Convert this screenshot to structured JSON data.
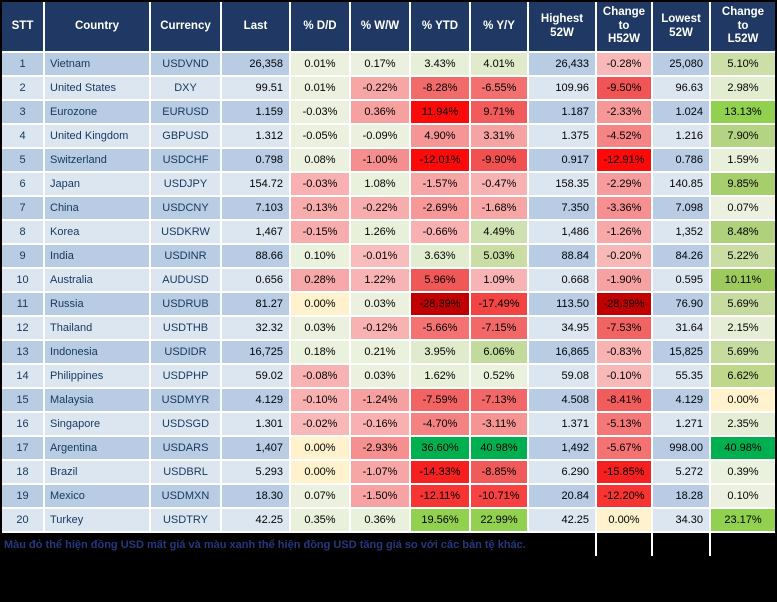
{
  "colors": {
    "header_bg": "#1F3864",
    "header_text": "#FFFFFF",
    "row_odd": "#B8CCE4",
    "row_even": "#DCE6F1",
    "grid": "#FFFFFF",
    "identifier_text": "#17375D",
    "footer_bg": "#000000",
    "footer_text": "#25387E",
    "zero_cell": "#FFF2CC",
    "strong_green": "#00B050",
    "bright_green": "#92D050",
    "bright_red": "#FB0A0A",
    "dark_red": "#C00000"
  },
  "table": {
    "columns": [
      {
        "key": "stt",
        "label": "STT"
      },
      {
        "key": "country",
        "label": "Country"
      },
      {
        "key": "currency",
        "label": "Currency"
      },
      {
        "key": "last",
        "label": "Last"
      },
      {
        "key": "dd",
        "label": "% D/D"
      },
      {
        "key": "ww",
        "label": "% W/W"
      },
      {
        "key": "ytd",
        "label": "% YTD"
      },
      {
        "key": "yy",
        "label": "% Y/Y"
      },
      {
        "key": "high",
        "label": "Highest\n52W"
      },
      {
        "key": "chg_h",
        "label": "Change\nto\nH52W"
      },
      {
        "key": "low",
        "label": "Lowest\n52W"
      },
      {
        "key": "chg_l",
        "label": "Change\nto\nL52W"
      }
    ],
    "rows": [
      {
        "stt": "1",
        "country": "Vietnam",
        "currency": "USDVND",
        "last": "26,358",
        "dd": {
          "v": "0.01%",
          "c": "#EBF1DE"
        },
        "ww": {
          "v": "0.17%",
          "c": "#EBF1DE"
        },
        "ytd": {
          "v": "3.43%",
          "c": "#E6EFD7"
        },
        "yy": {
          "v": "4.01%",
          "c": "#E0EBCB"
        },
        "high": "26,433",
        "chg_h": {
          "v": "-0.28%",
          "c": "#F8B8B8"
        },
        "low": "25,080",
        "chg_l": {
          "v": "5.10%",
          "c": "#CCDFA9"
        }
      },
      {
        "stt": "2",
        "country": "United States",
        "currency": "DXY",
        "last": "99.51",
        "dd": {
          "v": "0.01%",
          "c": "#EBF1DE"
        },
        "ww": {
          "v": "-0.22%",
          "c": "#F7A6A6"
        },
        "ytd": {
          "v": "-8.28%",
          "c": "#F26B6B"
        },
        "yy": {
          "v": "-6.55%",
          "c": "#F27070"
        },
        "high": "109.96",
        "chg_h": {
          "v": "-9.50%",
          "c": "#F15454"
        },
        "low": "96.63",
        "chg_l": {
          "v": "2.98%",
          "c": "#E2ECCF"
        }
      },
      {
        "stt": "3",
        "country": "Eurozone",
        "currency": "EURUSD",
        "last": "1.159",
        "dd": {
          "v": "-0.03%",
          "c": "#EBF1DE"
        },
        "ww": {
          "v": "0.36%",
          "c": "#F7A0A0"
        },
        "ytd": {
          "v": "11.94%",
          "c": "#FB0A0A"
        },
        "yy": {
          "v": "9.71%",
          "c": "#F25B5B"
        },
        "high": "1.187",
        "chg_h": {
          "v": "-2.33%",
          "c": "#F69898"
        },
        "low": "1.024",
        "chg_l": {
          "v": "13.13%",
          "c": "#92D050"
        }
      },
      {
        "stt": "4",
        "country": "United Kingdom",
        "currency": "GBPUSD",
        "last": "1.312",
        "dd": {
          "v": "-0.05%",
          "c": "#EBF1DE"
        },
        "ww": {
          "v": "-0.09%",
          "c": "#EBF1DE"
        },
        "ytd": {
          "v": "4.90%",
          "c": "#F59595"
        },
        "yy": {
          "v": "3.31%",
          "c": "#F6A3A3"
        },
        "high": "1.375",
        "chg_h": {
          "v": "-4.52%",
          "c": "#F58585"
        },
        "low": "1.216",
        "chg_l": {
          "v": "7.90%",
          "c": "#B4D483"
        }
      },
      {
        "stt": "5",
        "country": "Switzerland",
        "currency": "USDCHF",
        "last": "0.798",
        "dd": {
          "v": "0.08%",
          "c": "#EBF1DE"
        },
        "ww": {
          "v": "-1.00%",
          "c": "#F58E8E"
        },
        "ytd": {
          "v": "-12.01%",
          "c": "#FB0A0A"
        },
        "yy": {
          "v": "-9.90%",
          "c": "#F15151"
        },
        "high": "0.917",
        "chg_h": {
          "v": "-12.91%",
          "c": "#FB0A0A"
        },
        "low": "0.786",
        "chg_l": {
          "v": "1.59%",
          "c": "#E8F0DA"
        }
      },
      {
        "stt": "6",
        "country": "Japan",
        "currency": "USDJPY",
        "last": "154.72",
        "dd": {
          "v": "-0.03%",
          "c": "#F8B0B0"
        },
        "ww": {
          "v": "1.08%",
          "c": "#E9F0DC"
        },
        "ytd": {
          "v": "-1.57%",
          "c": "#F7A6A6"
        },
        "yy": {
          "v": "-0.47%",
          "c": "#F8B2B2"
        },
        "high": "158.35",
        "chg_h": {
          "v": "-2.29%",
          "c": "#F69C9C"
        },
        "low": "140.85",
        "chg_l": {
          "v": "9.85%",
          "c": "#A6CE6C"
        }
      },
      {
        "stt": "7",
        "country": "China",
        "currency": "USDCNY",
        "last": "7.103",
        "dd": {
          "v": "-0.13%",
          "c": "#F8ADAD"
        },
        "ww": {
          "v": "-0.22%",
          "c": "#F8ADAD"
        },
        "ytd": {
          "v": "-2.69%",
          "c": "#F69898"
        },
        "yy": {
          "v": "-1.68%",
          "c": "#F7A6A6"
        },
        "high": "7.350",
        "chg_h": {
          "v": "-3.36%",
          "c": "#F69090"
        },
        "low": "7.098",
        "chg_l": {
          "v": "0.07%",
          "c": "#EBF1DE"
        }
      },
      {
        "stt": "8",
        "country": "Korea",
        "currency": "USDKRW",
        "last": "1,467",
        "dd": {
          "v": "-0.15%",
          "c": "#F8ADAD"
        },
        "ww": {
          "v": "1.26%",
          "c": "#E8F0DA"
        },
        "ytd": {
          "v": "-0.66%",
          "c": "#F8B0B0"
        },
        "yy": {
          "v": "4.49%",
          "c": "#CFE1B0"
        },
        "high": "1,486",
        "chg_h": {
          "v": "-1.26%",
          "c": "#F7A8A8"
        },
        "low": "1,352",
        "chg_l": {
          "v": "8.48%",
          "c": "#AFD17C"
        }
      },
      {
        "stt": "9",
        "country": "India",
        "currency": "USDINR",
        "last": "88.66",
        "dd": {
          "v": "0.10%",
          "c": "#EAF1DD"
        },
        "ww": {
          "v": "-0.01%",
          "c": "#F9BCBC"
        },
        "ytd": {
          "v": "3.63%",
          "c": "#E2ECCF"
        },
        "yy": {
          "v": "5.03%",
          "c": "#C9DDA4"
        },
        "high": "88.84",
        "chg_h": {
          "v": "-0.20%",
          "c": "#F8B8B8"
        },
        "low": "84.26",
        "chg_l": {
          "v": "5.22%",
          "c": "#C9DDA4"
        }
      },
      {
        "stt": "10",
        "country": "Australia",
        "currency": "AUDUSD",
        "last": "0.656",
        "dd": {
          "v": "0.28%",
          "c": "#F7A8A8"
        },
        "ww": {
          "v": "1.22%",
          "c": "#F8B4B4"
        },
        "ytd": {
          "v": "5.96%",
          "c": "#F05858"
        },
        "yy": {
          "v": "1.09%",
          "c": "#F8B4B4"
        },
        "high": "0.668",
        "chg_h": {
          "v": "-1.90%",
          "c": "#F7A2A2"
        },
        "low": "0.595",
        "chg_l": {
          "v": "10.11%",
          "c": "#9ECA5D"
        }
      },
      {
        "stt": "11",
        "country": "Russia",
        "currency": "USDRUB",
        "last": "81.27",
        "dd": {
          "v": "0.00%",
          "c": "#FFF2CC"
        },
        "ww": {
          "v": "0.03%",
          "c": "#EBF1DE"
        },
        "ytd": {
          "v": "-28.39%",
          "c": "#C00000"
        },
        "yy": {
          "v": "-17.49%",
          "c": "#F34444"
        },
        "high": "113.50",
        "chg_h": {
          "v": "-28.39%",
          "c": "#C00000"
        },
        "low": "76.90",
        "chg_l": {
          "v": "5.69%",
          "c": "#C5DB9F"
        }
      },
      {
        "stt": "12",
        "country": "Thailand",
        "currency": "USDTHB",
        "last": "32.32",
        "dd": {
          "v": "0.03%",
          "c": "#EBF1DE"
        },
        "ww": {
          "v": "-0.12%",
          "c": "#F8B2B2"
        },
        "ytd": {
          "v": "-5.66%",
          "c": "#F47272"
        },
        "yy": {
          "v": "-7.15%",
          "c": "#F26868"
        },
        "high": "34.95",
        "chg_h": {
          "v": "-7.53%",
          "c": "#F26464"
        },
        "low": "31.64",
        "chg_l": {
          "v": "2.15%",
          "c": "#E5EED4"
        }
      },
      {
        "stt": "13",
        "country": "Indonesia",
        "currency": "USDIDR",
        "last": "16,725",
        "dd": {
          "v": "0.18%",
          "c": "#EAF1DD"
        },
        "ww": {
          "v": "0.21%",
          "c": "#EAF1DD"
        },
        "ytd": {
          "v": "3.95%",
          "c": "#E0EBCB"
        },
        "yy": {
          "v": "6.06%",
          "c": "#C2DA9B"
        },
        "high": "16,865",
        "chg_h": {
          "v": "-0.83%",
          "c": "#F8B2B2"
        },
        "low": "15,825",
        "chg_l": {
          "v": "5.69%",
          "c": "#C5DB9F"
        }
      },
      {
        "stt": "14",
        "country": "Philippines",
        "currency": "USDPHP",
        "last": "59.02",
        "dd": {
          "v": "-0.08%",
          "c": "#F8B2B2"
        },
        "ww": {
          "v": "0.03%",
          "c": "#EBF1DE"
        },
        "ytd": {
          "v": "1.62%",
          "c": "#E8F0DA"
        },
        "yy": {
          "v": "0.52%",
          "c": "#EAF1DD"
        },
        "high": "59.08",
        "chg_h": {
          "v": "-0.10%",
          "c": "#F8B8B8"
        },
        "low": "55.35",
        "chg_l": {
          "v": "6.62%",
          "c": "#BED78B"
        }
      },
      {
        "stt": "15",
        "country": "Malaysia",
        "currency": "USDMYR",
        "last": "4.129",
        "dd": {
          "v": "-0.10%",
          "c": "#F8B0B0"
        },
        "ww": {
          "v": "-1.24%",
          "c": "#F7A0A0"
        },
        "ytd": {
          "v": "-7.59%",
          "c": "#F26464"
        },
        "yy": {
          "v": "-7.13%",
          "c": "#F26868"
        },
        "high": "4.508",
        "chg_h": {
          "v": "-8.41%",
          "c": "#F15C5C"
        },
        "low": "4.129",
        "chg_l": {
          "v": "0.00%",
          "c": "#FFF2CC"
        }
      },
      {
        "stt": "16",
        "country": "Singapore",
        "currency": "USDSGD",
        "last": "1.301",
        "dd": {
          "v": "-0.02%",
          "c": "#F8B8B8"
        },
        "ww": {
          "v": "-0.16%",
          "c": "#F8B0B0"
        },
        "ytd": {
          "v": "-4.70%",
          "c": "#F58282"
        },
        "yy": {
          "v": "-3.11%",
          "c": "#F69494"
        },
        "high": "1.371",
        "chg_h": {
          "v": "-5.13%",
          "c": "#F47878"
        },
        "low": "1.271",
        "chg_l": {
          "v": "2.35%",
          "c": "#E5EED4"
        }
      },
      {
        "stt": "17",
        "country": "Argentina",
        "currency": "USDARS",
        "last": "1,407",
        "dd": {
          "v": "0.00%",
          "c": "#FFF2CC"
        },
        "ww": {
          "v": "-2.93%",
          "c": "#F69090"
        },
        "ytd": {
          "v": "36.60%",
          "c": "#00B050"
        },
        "yy": {
          "v": "40.98%",
          "c": "#00B050"
        },
        "high": "1,492",
        "chg_h": {
          "v": "-5.67%",
          "c": "#F47272"
        },
        "low": "998.00",
        "chg_l": {
          "v": "40.98%",
          "c": "#00B050"
        }
      },
      {
        "stt": "18",
        "country": "Brazil",
        "currency": "USDBRL",
        "last": "5.293",
        "dd": {
          "v": "0.00%",
          "c": "#FFF2CC"
        },
        "ww": {
          "v": "-1.07%",
          "c": "#F7A6A6"
        },
        "ytd": {
          "v": "-14.33%",
          "c": "#F52020"
        },
        "yy": {
          "v": "-8.85%",
          "c": "#F15A5A"
        },
        "high": "6.290",
        "chg_h": {
          "v": "-15.85%",
          "c": "#F52020"
        },
        "low": "5.272",
        "chg_l": {
          "v": "0.39%",
          "c": "#EAF1DD"
        }
      },
      {
        "stt": "19",
        "country": "Mexico",
        "currency": "USDMXN",
        "last": "18.30",
        "dd": {
          "v": "0.07%",
          "c": "#EBF1DE"
        },
        "ww": {
          "v": "-1.50%",
          "c": "#F7A3A3"
        },
        "ytd": {
          "v": "-12.11%",
          "c": "#F73434"
        },
        "yy": {
          "v": "-10.71%",
          "c": "#F64242"
        },
        "high": "20.84",
        "chg_h": {
          "v": "-12.20%",
          "c": "#F73434"
        },
        "low": "18.28",
        "chg_l": {
          "v": "0.10%",
          "c": "#EBF1DE"
        }
      },
      {
        "stt": "20",
        "country": "Turkey",
        "currency": "USDTRY",
        "last": "42.25",
        "dd": {
          "v": "0.35%",
          "c": "#E9F0DC"
        },
        "ww": {
          "v": "0.36%",
          "c": "#E9F0DC"
        },
        "ytd": {
          "v": "19.56%",
          "c": "#92D050"
        },
        "yy": {
          "v": "22.99%",
          "c": "#92D050"
        },
        "high": "42.25",
        "chg_h": {
          "v": "0.00%",
          "c": "#FFF2CC"
        },
        "low": "34.30",
        "chg_l": {
          "v": "23.17%",
          "c": "#92D050"
        }
      }
    ]
  },
  "footer": {
    "note": "Màu đỏ thể hiện đồng USD mất giá và màu xanh thể hiện đồng USD tăng giá so với các bản tệ khác."
  }
}
